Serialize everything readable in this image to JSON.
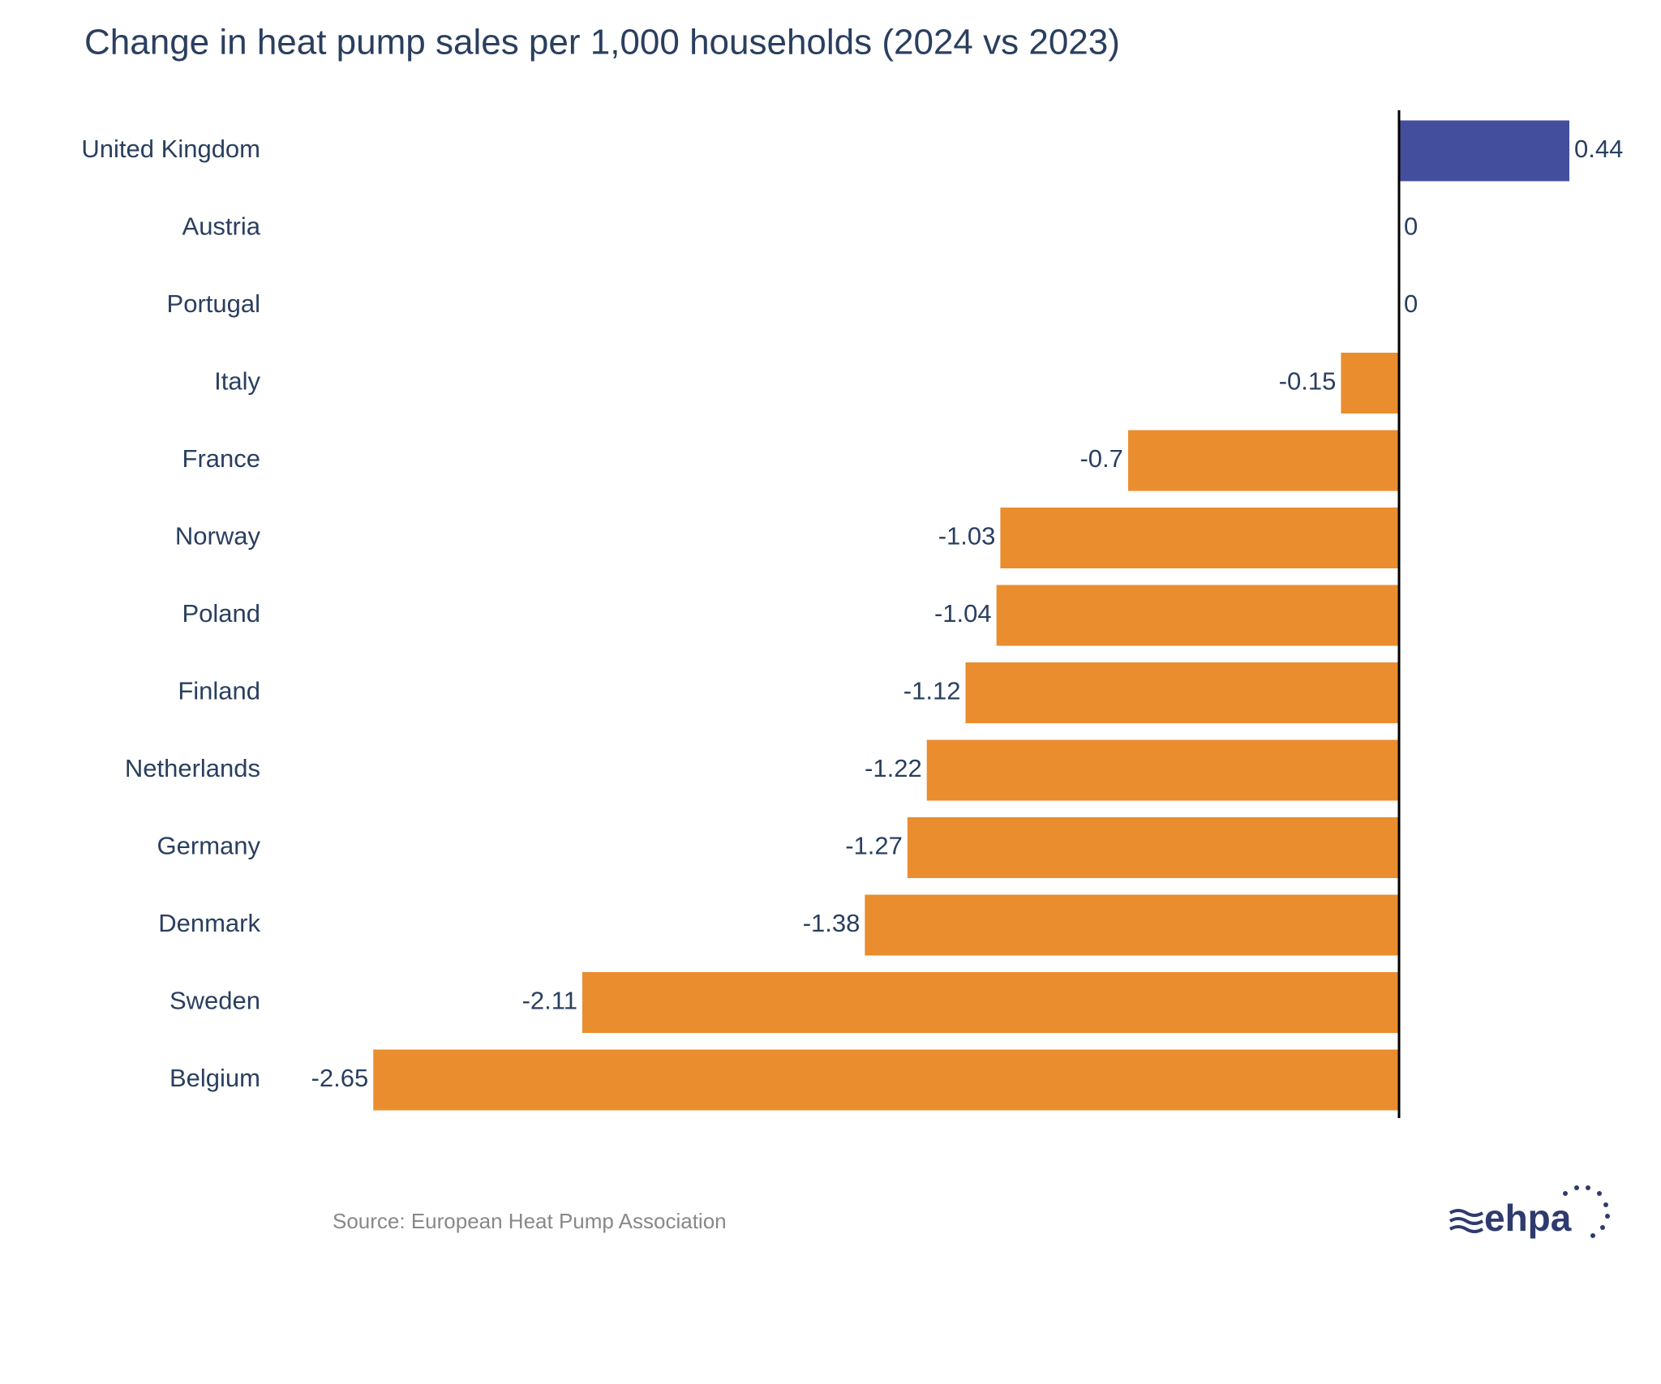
{
  "chart_data": {
    "type": "bar",
    "orientation": "horizontal",
    "title": "Change in heat pump sales per 1,000 households (2024 vs 2023)",
    "categories": [
      "United Kingdom",
      "Austria",
      "Portugal",
      "Italy",
      "France",
      "Norway",
      "Poland",
      "Finland",
      "Netherlands",
      "Germany",
      "Denmark",
      "Sweden",
      "Belgium"
    ],
    "values": [
      0.44,
      0,
      0,
      -0.15,
      -0.7,
      -1.03,
      -1.04,
      -1.12,
      -1.22,
      -1.27,
      -1.38,
      -2.11,
      -2.65
    ],
    "positive_color": "#434f9c",
    "negative_color": "#e98d2e",
    "source": "Source: European Heat Pump Association",
    "logo": "ehpa"
  }
}
